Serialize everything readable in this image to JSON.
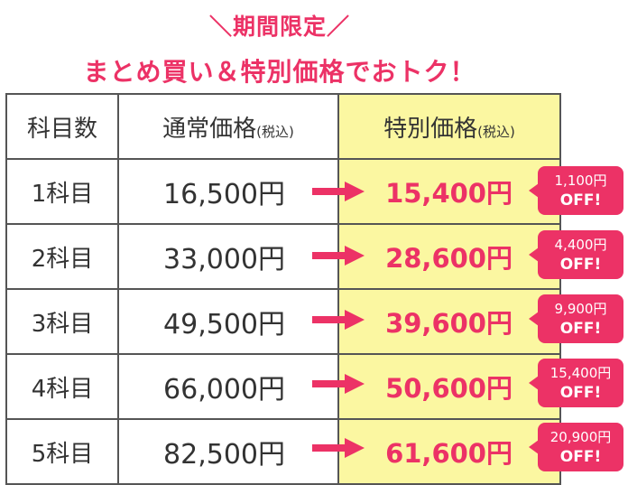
{
  "headline": {
    "sub": "＼期間限定／",
    "main": "まとめ買い＆特別価格でおトク！"
  },
  "table": {
    "headers": {
      "subjects": "科目数",
      "regular": "通常価格",
      "regular_tax": "(税込)",
      "special": "特別価格",
      "special_tax": "(税込)"
    },
    "rows": [
      {
        "subjects": "1科目",
        "regular": "16,500円",
        "special": "15,400円",
        "discount": "1,100円",
        "off": "OFF!"
      },
      {
        "subjects": "2科目",
        "regular": "33,000円",
        "special": "28,600円",
        "discount": "4,400円",
        "off": "OFF!"
      },
      {
        "subjects": "3科目",
        "regular": "49,500円",
        "special": "39,600円",
        "discount": "9,900円",
        "off": "OFF!"
      },
      {
        "subjects": "4科目",
        "regular": "66,000円",
        "special": "50,600円",
        "discount": "15,400円",
        "off": "OFF!"
      },
      {
        "subjects": "5科目",
        "regular": "82,500円",
        "special": "61,600円",
        "discount": "20,900円",
        "off": "OFF!"
      }
    ]
  },
  "colors": {
    "accent": "#ec3266",
    "highlight": "#fbf7a1",
    "border": "#555555",
    "text": "#333333"
  },
  "icons": {
    "arrow": "right-arrow-icon"
  }
}
